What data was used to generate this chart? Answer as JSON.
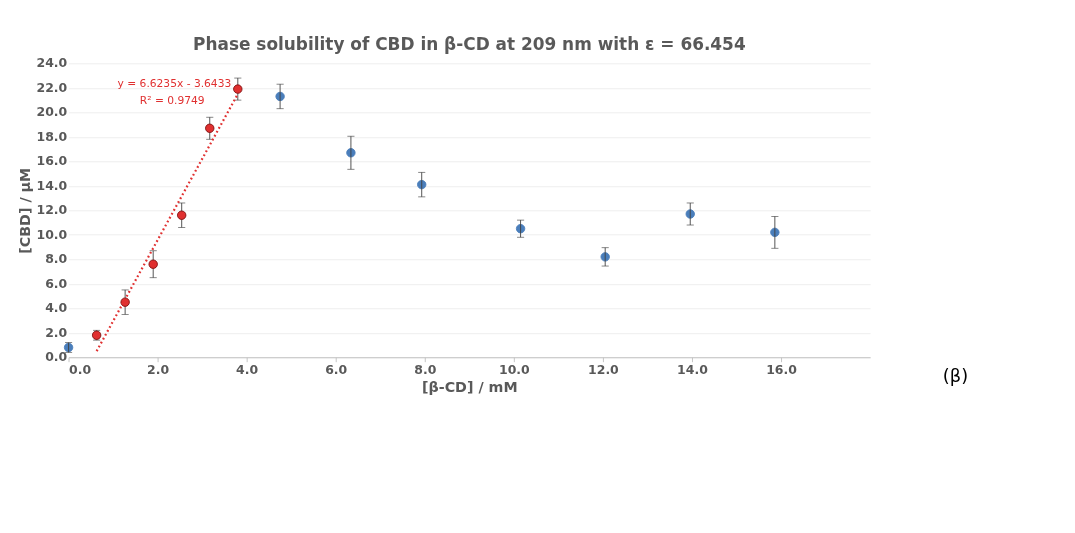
{
  "chart_data": {
    "type": "scatter",
    "title": "Phase solubility of CBD in β-CD at 209 nm with ε = 66.454",
    "xlabel": "[β-CD] / mM",
    "ylabel": "[CBD] / µM",
    "xlim": [
      0,
      18
    ],
    "xticks": [
      {
        "value": 0,
        "label": "0.0"
      },
      {
        "value": 2,
        "label": "2.0"
      },
      {
        "value": 4,
        "label": "4.0"
      },
      {
        "value": 6,
        "label": "6.0"
      },
      {
        "value": 8,
        "label": "8.0"
      },
      {
        "value": 10,
        "label": "10.0"
      },
      {
        "value": 12,
        "label": "12.0"
      },
      {
        "value": 14,
        "label": "14.0"
      },
      {
        "value": 16,
        "label": "16.0"
      }
    ],
    "ylim": [
      0,
      24
    ],
    "yticks": [
      {
        "value": 0,
        "label": "0.0"
      },
      {
        "value": 2,
        "label": "2.0"
      },
      {
        "value": 4,
        "label": "4.0"
      },
      {
        "value": 6,
        "label": "6.0"
      },
      {
        "value": 8,
        "label": "8.0"
      },
      {
        "value": 10,
        "label": "10.0"
      },
      {
        "value": 12,
        "label": "12.0"
      },
      {
        "value": 14,
        "label": "14.0"
      },
      {
        "value": 16,
        "label": "16.0"
      },
      {
        "value": 18,
        "label": "18.0"
      },
      {
        "value": 20,
        "label": "20.0"
      },
      {
        "value": 22,
        "label": "22.0"
      },
      {
        "value": 24,
        "label": "24.0"
      }
    ],
    "grid": "y",
    "marker": "circle",
    "series": [
      {
        "color": "#4a7ebb",
        "x": [
          0,
          4.75,
          6.34,
          7.93,
          10.15,
          12.05,
          13.96,
          15.86
        ],
        "values": [
          0.8,
          21.3,
          16.7,
          14.1,
          10.5,
          8.2,
          11.7,
          10.2
        ],
        "errors": [
          0.4,
          1.0,
          1.35,
          1.0,
          0.7,
          0.75,
          0.9,
          1.3
        ]
      },
      {
        "color": "#e03030",
        "x": [
          0.63,
          1.27,
          1.9,
          2.54,
          3.17,
          3.8
        ],
        "values": [
          1.8,
          4.5,
          7.6,
          11.6,
          18.7,
          21.9
        ],
        "errors": [
          0.4,
          1.0,
          1.1,
          1.0,
          0.9,
          0.9
        ]
      },
      {
        "type": "line",
        "color": "#e03030",
        "line_style": "dotted",
        "marker": "none",
        "x": [
          0.63,
          3.8
        ],
        "values": [
          0.5,
          21.5
        ]
      }
    ],
    "annotations": [
      "y = 6.6235x - 3.6433",
      "R² = 0.9749",
      "(β)"
    ]
  }
}
